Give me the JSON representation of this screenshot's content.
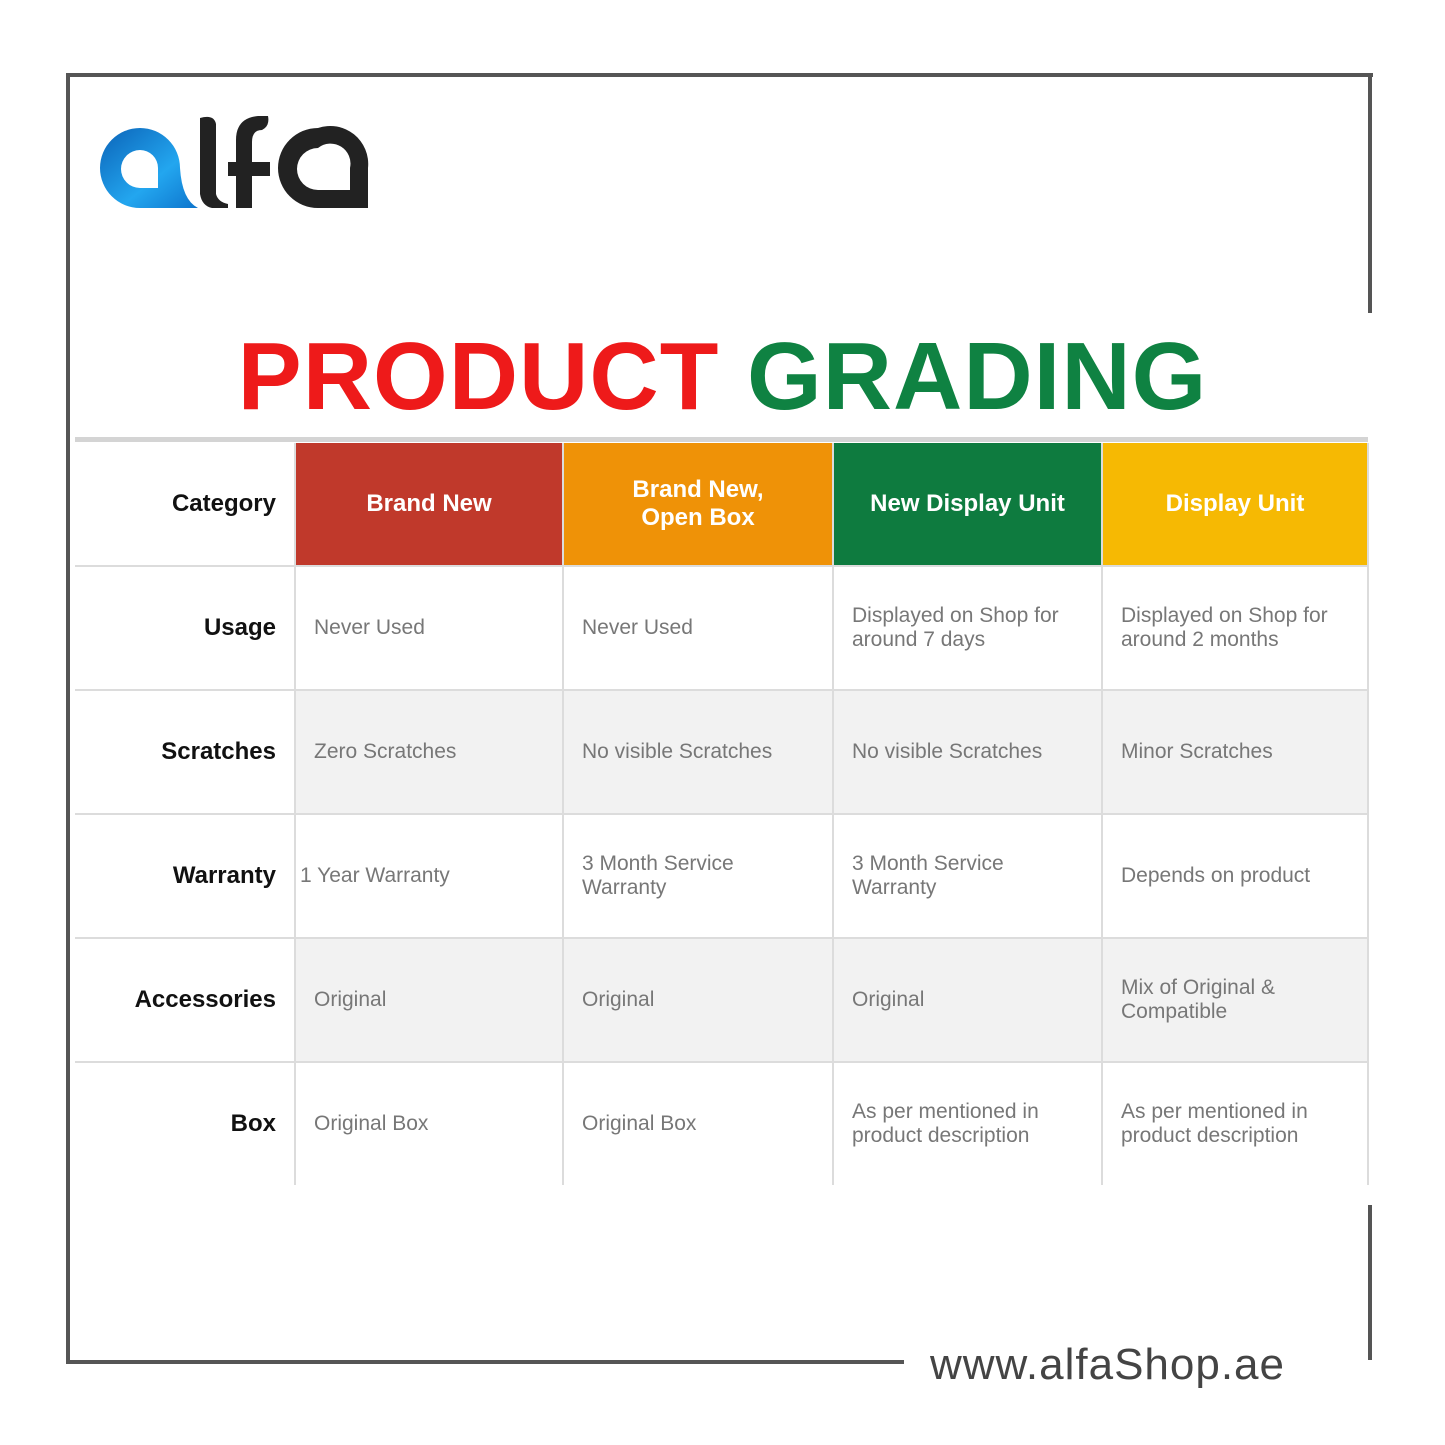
{
  "logo": {
    "text": "alfa",
    "colors": {
      "a": "#1a8ee0",
      "rest": "#222222"
    }
  },
  "title": {
    "part1": "PRODUCT",
    "part2": "GRADING",
    "color1": "#ee1a1a",
    "color2": "#0f8242"
  },
  "table": {
    "corner": "Category",
    "grades": [
      {
        "label": "Brand New",
        "color": "#c0392b"
      },
      {
        "label": "Brand New, Open Box",
        "color": "#ef9207"
      },
      {
        "label": "New Display Unit",
        "color": "#0e7b3f"
      },
      {
        "label": "Display Unit",
        "color": "#f6b903"
      }
    ],
    "rows": [
      {
        "label": "Usage",
        "cells": [
          "Never Used",
          "Never Used",
          "Displayed on Shop for around 7 days",
          "Displayed on Shop for around 2 months"
        ]
      },
      {
        "label": "Scratches",
        "cells": [
          "Zero Scratches",
          "No visible Scratches",
          "No visible Scratches",
          "Minor Scratches"
        ]
      },
      {
        "label": "Warranty",
        "cells": [
          "1 Year Warranty",
          "3 Month Service Warranty",
          "3 Month Service Warranty",
          "Depends on product"
        ]
      },
      {
        "label": "Accessories",
        "cells": [
          "Original",
          "Original",
          "Original",
          "Mix of Original & Compatible"
        ]
      },
      {
        "label": "Box",
        "cells": [
          "Original Box",
          "Original Box",
          "As per mentioned in product description",
          "As per mentioned in product description"
        ]
      }
    ]
  },
  "footer": {
    "url": "www.alfaShop.ae"
  }
}
